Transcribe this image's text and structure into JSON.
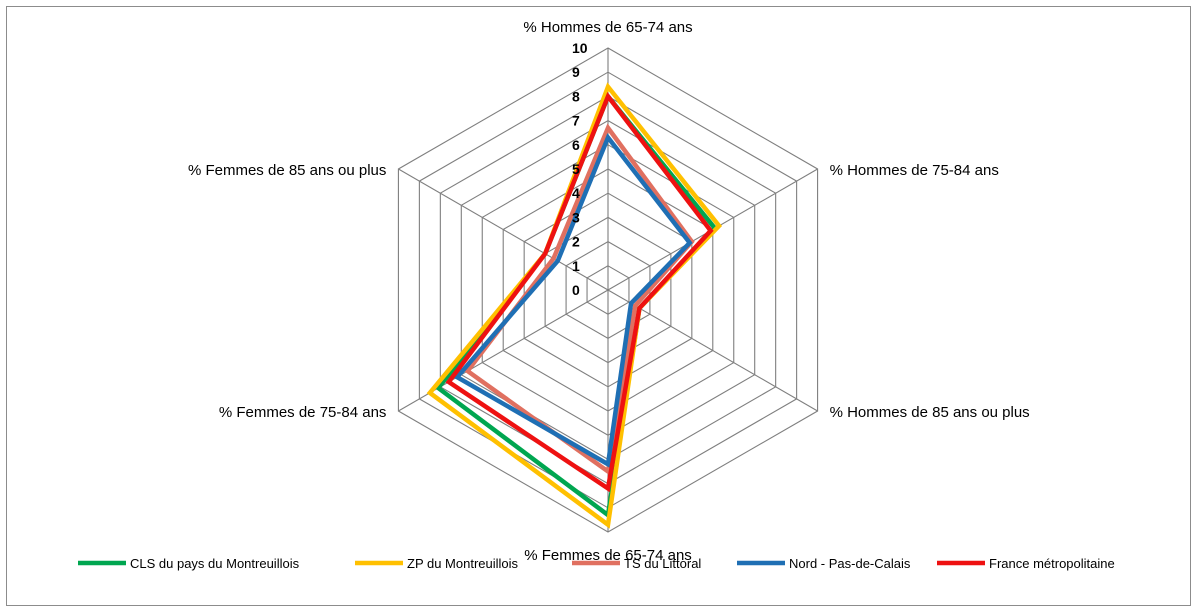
{
  "chart_data": {
    "type": "radar",
    "title": "",
    "axes": [
      "% Hommes de 65-74 ans",
      "% Hommes de 75-84 ans",
      "% Hommes de 85 ans ou plus",
      "% Femmes de 65-74 ans",
      "% Femmes de 75-84 ans",
      "% Femmes de 85 ans ou plus"
    ],
    "range": [
      0,
      10
    ],
    "ticks": [
      "0",
      "1",
      "2",
      "3",
      "4",
      "5",
      "6",
      "7",
      "8",
      "9",
      "10"
    ],
    "grid": true,
    "legend_position": "bottom",
    "series": [
      {
        "name": "CLS du pays du Montreuillois",
        "color": "#00a650",
        "values": [
          8.0,
          5.1,
          1.5,
          9.3,
          8.1,
          3.0
        ]
      },
      {
        "name": "ZP du Montreuillois",
        "color": "#ffc000",
        "values": [
          8.4,
          5.3,
          1.5,
          9.7,
          8.5,
          3.0
        ]
      },
      {
        "name": "TS du Littoral",
        "color": "#e07060",
        "values": [
          6.7,
          4.0,
          1.3,
          7.5,
          6.7,
          2.6
        ]
      },
      {
        "name": "Nord - Pas-de-Calais",
        "color": "#1f6fb4",
        "values": [
          6.3,
          3.9,
          1.1,
          7.2,
          7.2,
          2.4
        ]
      },
      {
        "name": "France métropolitaine",
        "color": "#ee1111",
        "values": [
          8.0,
          4.9,
          1.5,
          8.2,
          7.6,
          3.0
        ]
      }
    ]
  }
}
